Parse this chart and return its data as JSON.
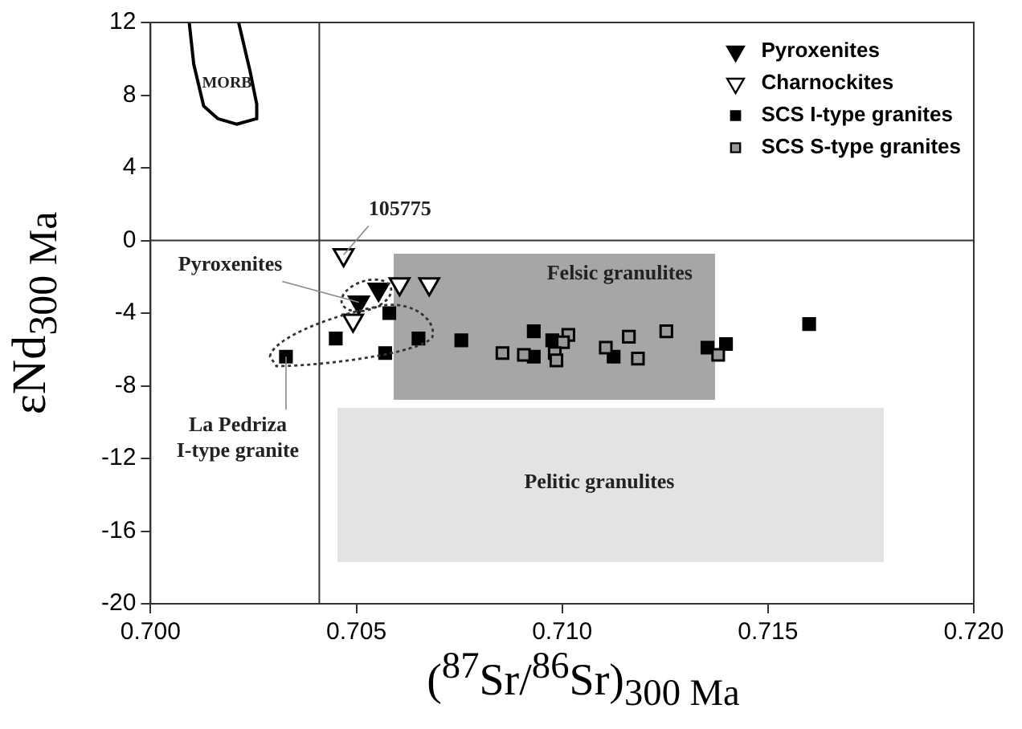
{
  "chart_data": {
    "type": "scatter",
    "xlabel": "($^{87}$Sr/$^{86}$Sr)$_{300 Ma}$",
    "ylabel": "εNd$_{300 Ma}$",
    "xlim": [
      0.7,
      0.72
    ],
    "xticks": [
      {
        "value": 0.7,
        "label": "0.700"
      },
      {
        "value": 0.705,
        "label": "0.705"
      },
      {
        "value": 0.71,
        "label": "0.710"
      },
      {
        "value": 0.715,
        "label": "0.715"
      },
      {
        "value": 0.72,
        "label": "0.720"
      }
    ],
    "ylim": [
      -20,
      12
    ],
    "yticks": [
      -20,
      -16,
      -12,
      -8,
      -4,
      0,
      4,
      8,
      12
    ],
    "grid": false,
    "legend": "top right",
    "ref_lines": [
      {
        "axis": "y",
        "value": 0
      },
      {
        "axis": "x",
        "value": 0.7041
      }
    ],
    "series": [
      {
        "type": "line",
        "name": "MORB",
        "color": "#000000",
        "line_style": "solid",
        "x": [
          0.70094,
          0.70105,
          0.70129,
          0.70164,
          0.70209,
          0.70257,
          0.70258,
          0.70242,
          0.70214
        ],
        "values": [
          12,
          9.7,
          7.4,
          6.7,
          6.4,
          6.7,
          7.5,
          9.3,
          12
        ]
      },
      {
        "name": "Pyroxenites",
        "color": "#000000",
        "marker": "triangle",
        "x": [
          0.70506,
          0.70554
        ],
        "values": [
          -3.4,
          -2.7
        ]
      },
      {
        "name": "Charnockites",
        "color": "#ffffff",
        "marker": "triangle",
        "x": [
          0.70469,
          0.70605,
          0.70677,
          0.70492
        ],
        "values": [
          -0.8,
          -2.4,
          -2.4,
          -4.4
        ]
      },
      {
        "name": "SCS I-type granites",
        "color": "#000000",
        "marker": "square",
        "x": [
          0.70329,
          0.7045,
          0.7058,
          0.70651,
          0.7057,
          0.70755,
          0.70931,
          0.70976,
          0.70931,
          0.71125,
          0.71353,
          0.71398,
          0.716
        ],
        "values": [
          -6.4,
          -5.4,
          -4.0,
          -5.4,
          -6.2,
          -5.5,
          -5.0,
          -5.5,
          -6.4,
          -6.4,
          -5.9,
          -5.7,
          -4.6
        ]
      },
      {
        "name": "SCS S-type granites",
        "color": "#999999",
        "marker": "square",
        "x": [
          0.70855,
          0.70907,
          0.71015,
          0.71002,
          0.70982,
          0.70986,
          0.71106,
          0.71162,
          0.71184,
          0.71253,
          0.71379
        ],
        "values": [
          -6.2,
          -6.3,
          -5.2,
          -5.6,
          -6.2,
          -6.6,
          -5.9,
          -5.3,
          -6.5,
          -5.0,
          -6.3
        ]
      }
    ],
    "annotations": [
      {
        "text": "105775",
        "x": 0.70469,
        "y": -0.8
      },
      {
        "text": "Pyroxenites",
        "x": 0.70506,
        "y": -3.4
      },
      {
        "text": "La Pedriza\nI-type granite",
        "x": 0.70329,
        "y": -6.4
      },
      "Felsic granulites",
      "Pelitic granulites"
    ]
  }
}
